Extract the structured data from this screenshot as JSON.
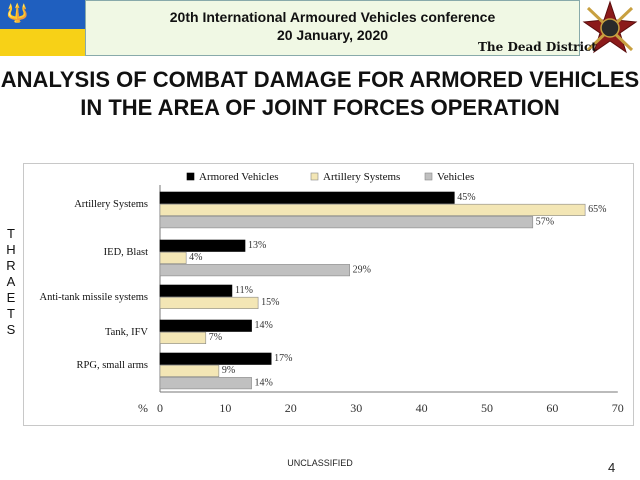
{
  "header": {
    "line1": "20th International Armoured Vehicles conference",
    "line2": "20 January, 2020",
    "district": "The Dead District"
  },
  "title": "ANALYSIS OF COMBAT DAMAGE FOR ARMORED VEHICLES IN THE AREA OF JOINT FORCES OPERATION",
  "side_label": [
    "T",
    "H",
    "R",
    "A",
    "E",
    "T",
    "S"
  ],
  "footer": {
    "classification": "UNCLASSIFIED",
    "page": "4"
  },
  "colors": {
    "armored": "#000000",
    "artillery": "#f3e6b5",
    "vehicles": "#c0c0c0"
  },
  "chart_data": {
    "type": "bar",
    "orientation": "horizontal",
    "categories": [
      "Artillery Systems",
      "IED, Blast",
      "Anti-tank missile systems",
      "Tank, IFV",
      "RPG, small arms"
    ],
    "series": [
      {
        "name": "Armored Vehicles",
        "color": "#000000",
        "values": [
          45,
          13,
          11,
          14,
          17
        ],
        "labels": [
          "45%",
          "13%",
          "11%",
          "14%",
          "17%"
        ]
      },
      {
        "name": "Artillery Systems",
        "color": "#f3e6b5",
        "values": [
          65,
          4,
          15,
          7,
          9
        ],
        "labels": [
          "65%",
          "4%",
          "15%",
          "7%",
          "9%"
        ]
      },
      {
        "name": "Vehicles",
        "color": "#c0c0c0",
        "values": [
          57,
          29,
          null,
          null,
          14
        ],
        "labels": [
          "57%",
          "29%",
          "",
          "",
          "14%"
        ]
      }
    ],
    "x_unit_label": "%",
    "xticks": [
      "0",
      "10",
      "20",
      "30",
      "40",
      "50",
      "60",
      "70"
    ],
    "xlim": [
      0,
      70
    ],
    "legend": "top",
    "grid": false
  }
}
